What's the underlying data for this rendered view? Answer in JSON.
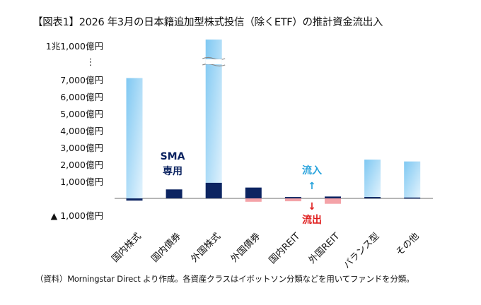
{
  "title": "【図表1】2026 年3月の日本籍追加型株式投信（除くETF）の推計資金流出入",
  "footnote": "（資料）Morningstar Direct より作成。各資産クラスはイボットソン分類などを用いてファンドを分類。",
  "chart_data": {
    "type": "bar",
    "categories": [
      "国内株式",
      "国内債券",
      "外国株式",
      "外国債券",
      "国内REIT",
      "外国REIT",
      "バランス型",
      "その他"
    ],
    "series": [
      {
        "values": [
          7100,
          0,
          11000,
          -200,
          -170,
          -320,
          2290,
          2180
        ],
        "color": "#8fd0f5",
        "negative_color": "#f4a3a8"
      },
      {
        "values": [
          -130,
          530,
          920,
          640,
          80,
          110,
          80,
          50
        ],
        "color": "#0c2461"
      }
    ],
    "y_ticks": [
      {
        "value": 11000,
        "label": "1兆1,000億円"
      },
      {
        "value": 7000,
        "label": "7,000億円"
      },
      {
        "value": 6000,
        "label": "6,000億円"
      },
      {
        "value": 5000,
        "label": "5,000億円"
      },
      {
        "value": 4000,
        "label": "4,000億円"
      },
      {
        "value": 3000,
        "label": "3,000億円"
      },
      {
        "value": 2000,
        "label": "2,000億円"
      },
      {
        "value": 1000,
        "label": "1,000億円"
      },
      {
        "value": -1000,
        "label": "▲ 1,000億円"
      }
    ],
    "axis_break": {
      "from": 8000,
      "to": 11000,
      "marker": "⋮"
    },
    "ylim": [
      -1000,
      11000
    ],
    "grid": false,
    "annotations": {
      "sma": [
        "SMA",
        "専用"
      ],
      "inflow": "流入",
      "inflow_arrow": "↑",
      "outflow": "流出",
      "outflow_arrow": "↓",
      "inflow_color": "#29a3dc",
      "outflow_color": "#e02020",
      "sma_color": "#0c2461"
    }
  }
}
